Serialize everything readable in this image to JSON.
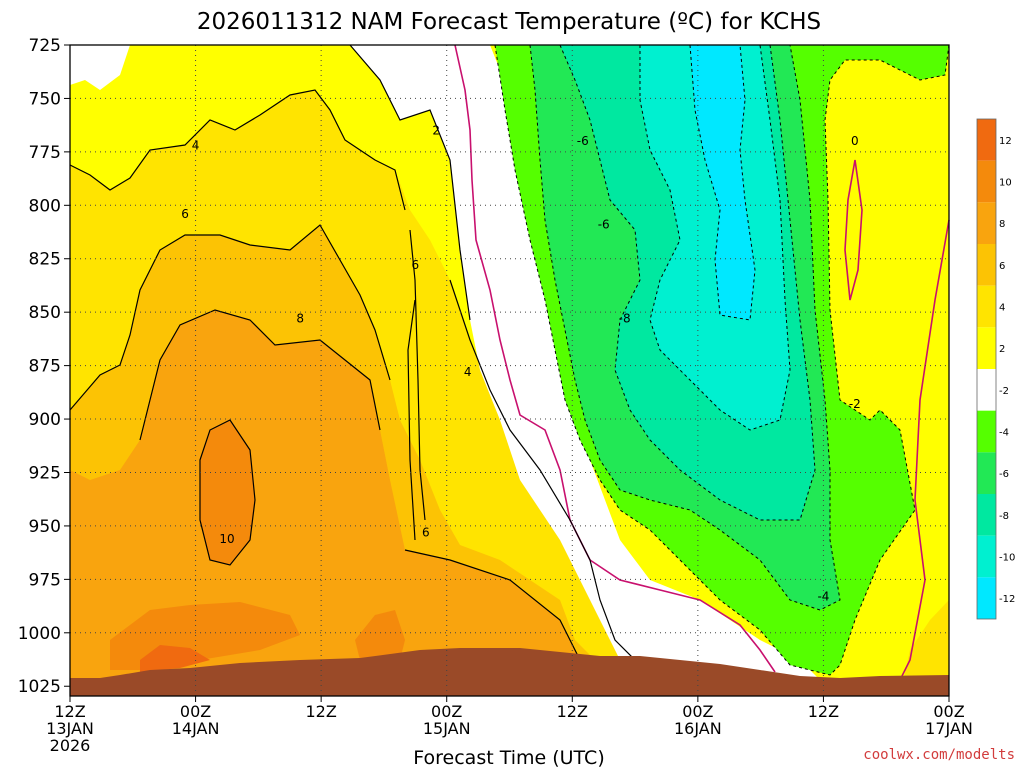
{
  "chart_data": {
    "type": "contour",
    "title": "2026011312 NAM Forecast Temperature (ºC) for KCHS",
    "xlabel": "Forecast Time (UTC)",
    "ylabel": "",
    "credit": "coolwx.com/modelts",
    "y_axis": {
      "ticks": [
        "725",
        "750",
        "775",
        "800",
        "825",
        "850",
        "875",
        "900",
        "925",
        "950",
        "975",
        "1000",
        "1025"
      ],
      "range": [
        725,
        1025
      ],
      "inverted": true,
      "grid": true
    },
    "x_axis": {
      "ticks": [
        {
          "line1": "12Z",
          "line2": "13JAN",
          "line3": "2026",
          "hour": 0
        },
        {
          "line1": "00Z",
          "line2": "14JAN",
          "line3": "",
          "hour": 12
        },
        {
          "line1": "12Z",
          "line2": "",
          "line3": "",
          "hour": 24
        },
        {
          "line1": "00Z",
          "line2": "15JAN",
          "line3": "",
          "hour": 36
        },
        {
          "line1": "12Z",
          "line2": "",
          "line3": "",
          "hour": 48
        },
        {
          "line1": "00Z",
          "line2": "16JAN",
          "line3": "",
          "hour": 60
        },
        {
          "line1": "12Z",
          "line2": "",
          "line3": "",
          "hour": 72
        },
        {
          "line1": "00Z",
          "line2": "17JAN",
          "line3": "",
          "hour": 84
        }
      ],
      "range": [
        0,
        84
      ],
      "grid": true
    },
    "colorbar": {
      "labels": [
        "12",
        "10",
        "8",
        "6",
        "4",
        "2",
        "-2",
        "-4",
        "-6",
        "-8",
        "-10",
        "-12"
      ],
      "colors": [
        "#f06a10",
        "#f48a0c",
        "#f9a40e",
        "#fcc304",
        "#ffe400",
        "#ffff00",
        "#ffffff",
        "#55ff00",
        "#22e855",
        "#00e8a0",
        "#00f0d0",
        "#00e8ff"
      ]
    },
    "contour_labels": [
      {
        "text": "4",
        "hour": 12,
        "pressure": 772
      },
      {
        "text": "6",
        "hour": 11,
        "pressure": 804
      },
      {
        "text": "8",
        "hour": 22,
        "pressure": 853
      },
      {
        "text": "10",
        "hour": 15,
        "pressure": 956
      },
      {
        "text": "2",
        "hour": 35,
        "pressure": 765
      },
      {
        "text": "6",
        "hour": 33,
        "pressure": 828
      },
      {
        "text": "4",
        "hour": 38,
        "pressure": 878
      },
      {
        "text": "6",
        "hour": 34,
        "pressure": 953
      },
      {
        "text": "-6",
        "hour": 49,
        "pressure": 770
      },
      {
        "text": "-6",
        "hour": 51,
        "pressure": 809
      },
      {
        "text": "-8",
        "hour": 53,
        "pressure": 853
      },
      {
        "text": "0",
        "hour": 75,
        "pressure": 770
      },
      {
        "text": "-2",
        "hour": 75,
        "pressure": 893
      },
      {
        "text": "-4",
        "hour": 72,
        "pressure": 983
      }
    ]
  }
}
